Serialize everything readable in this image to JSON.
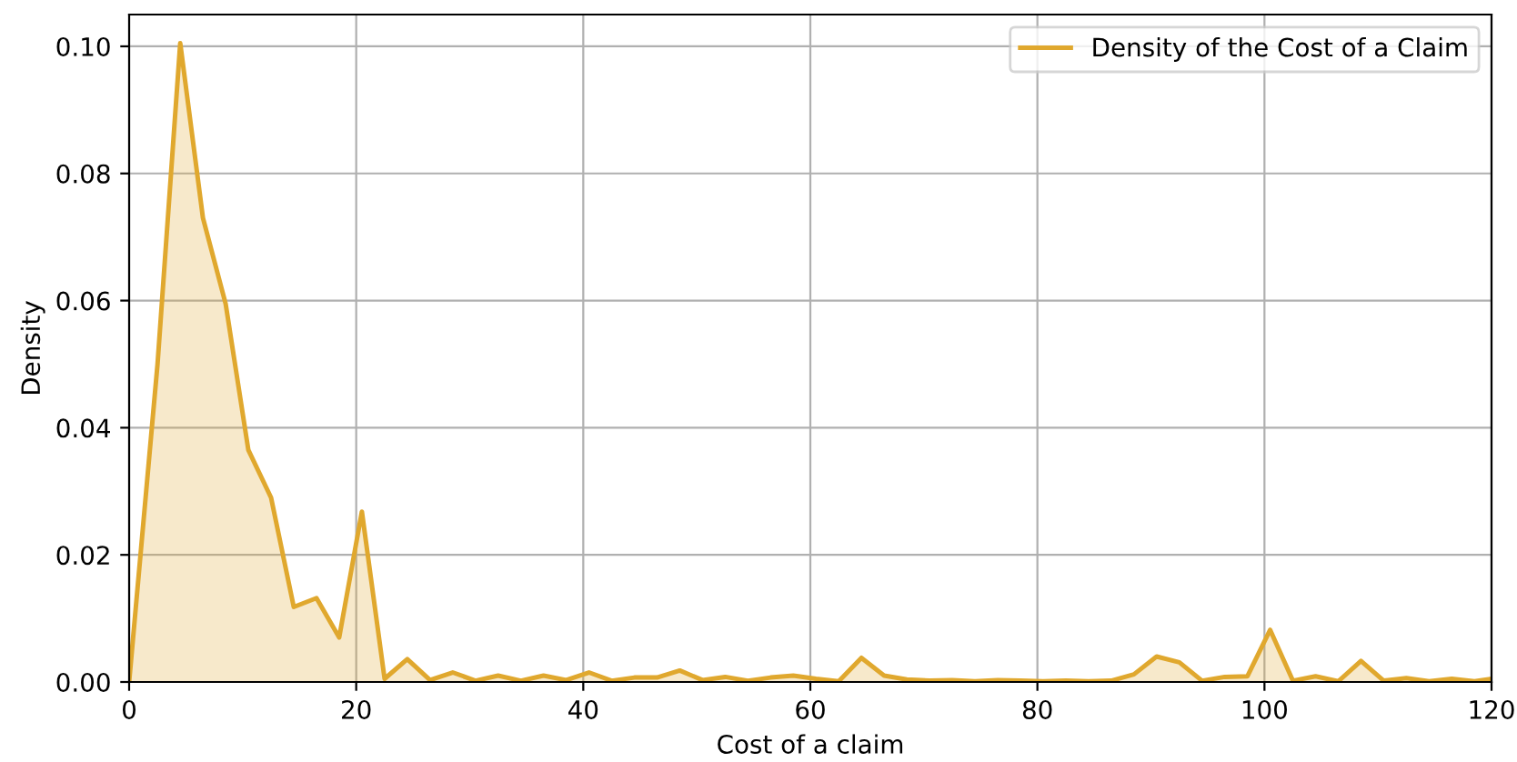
{
  "chart_data": {
    "type": "area",
    "xlabel": "Cost of a claim",
    "ylabel": "Density",
    "x": [
      0,
      2.5,
      4.5,
      6.5,
      8.5,
      10.5,
      12.5,
      14.5,
      16.5,
      18.5,
      20.5,
      22.5,
      24.5,
      26.5,
      28.5,
      30.5,
      32.5,
      34.5,
      36.5,
      38.5,
      40.5,
      42.5,
      44.5,
      46.5,
      48.5,
      50.5,
      52.5,
      54.5,
      56.5,
      58.5,
      60.5,
      62.5,
      64.5,
      66.5,
      68.5,
      70.5,
      72.5,
      74.5,
      76.5,
      78.5,
      80.5,
      82.5,
      84.5,
      86.5,
      88.5,
      90.5,
      92.5,
      94.5,
      96.5,
      98.5,
      100.5,
      102.5,
      104.5,
      106.5,
      108.5,
      110.5,
      112.5,
      114.5,
      116.5,
      118.5,
      120
    ],
    "series": [
      {
        "name": "Density of the Cost of a Claim",
        "color": "#e0a82e",
        "values": [
          0,
          0.05,
          0.1005,
          0.073,
          0.0595,
          0.0365,
          0.029,
          0.0118,
          0.0132,
          0.007,
          0.0268,
          0.0005,
          0.0036,
          0.0003,
          0.0015,
          0.0002,
          0.001,
          0.0002,
          0.001,
          0.0003,
          0.0015,
          0.0002,
          0.0007,
          0.0007,
          0.0018,
          0.0003,
          0.0008,
          0.0002,
          0.0007,
          0.001,
          0.0005,
          0.0001,
          0.0038,
          0.001,
          0.0004,
          0.0002,
          0.0003,
          0.0001,
          0.0003,
          0.0002,
          0.0001,
          0.0002,
          0.0001,
          0.0002,
          0.0012,
          0.004,
          0.0031,
          0.0002,
          0.0008,
          0.0009,
          0.0082,
          0.0002,
          0.0009,
          0.0001,
          0.0033,
          0.0002,
          0.0006,
          0.0001,
          0.0005,
          0.0001,
          0.0005
        ]
      }
    ],
    "xlim": [
      0,
      120
    ],
    "xticks": [
      0,
      20,
      40,
      60,
      80,
      100,
      120
    ],
    "ylim": [
      0,
      0.105
    ],
    "yticks": [
      {
        "value": 0,
        "label": "0.00"
      },
      {
        "value": 0.02,
        "label": "0.02"
      },
      {
        "value": 0.04,
        "label": "0.04"
      },
      {
        "value": 0.06,
        "label": "0.06"
      },
      {
        "value": 0.08,
        "label": "0.08"
      },
      {
        "value": 0.1,
        "label": "0.10"
      }
    ],
    "grid": true,
    "legend": "top right"
  }
}
